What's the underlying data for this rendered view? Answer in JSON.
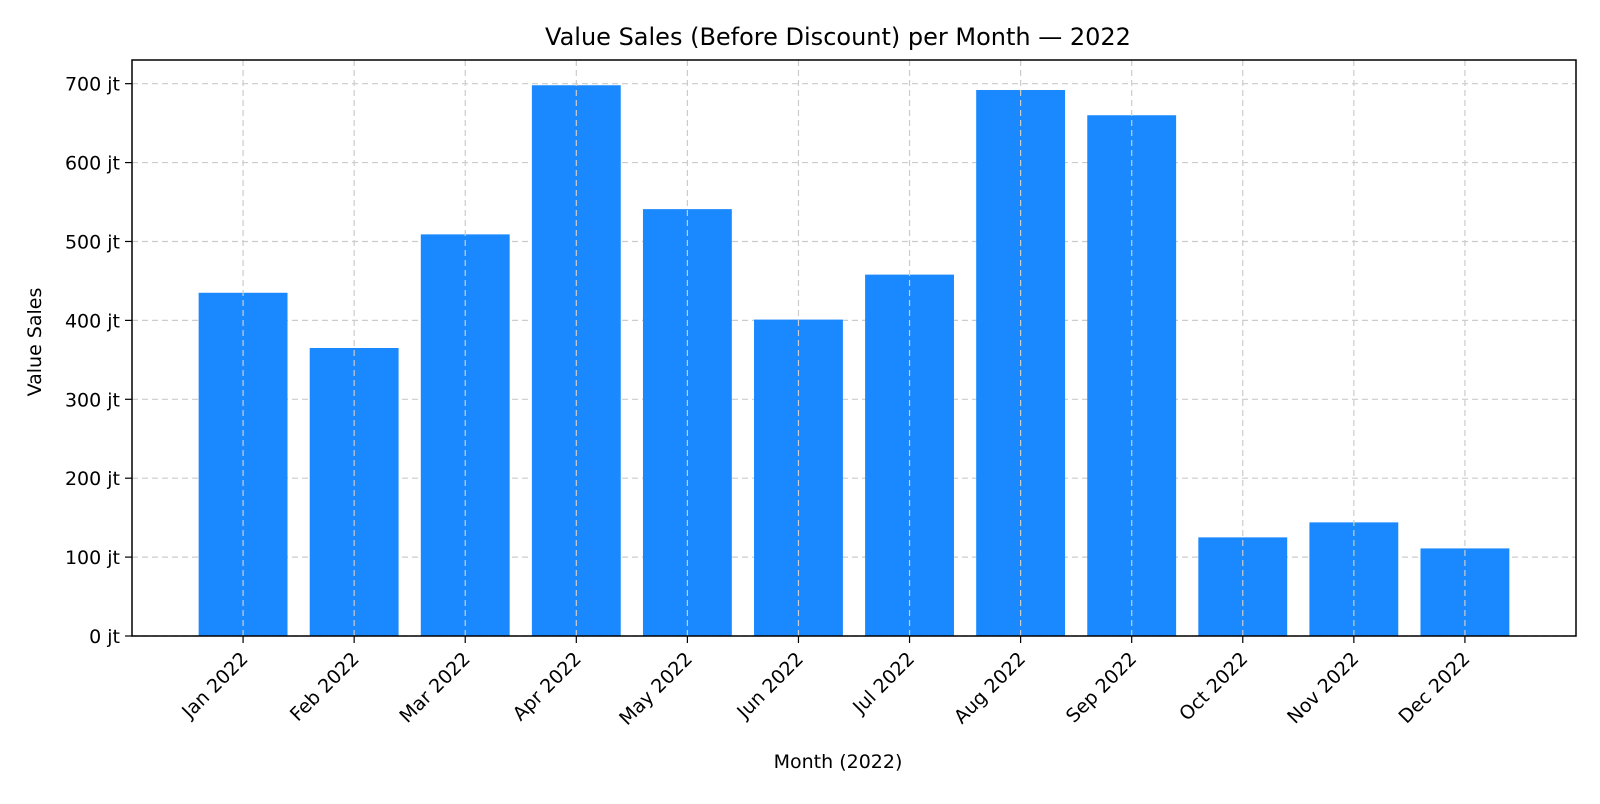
{
  "chart_data": {
    "type": "bar",
    "title": "Value Sales (Before Discount) per Month — 2022",
    "xlabel": "Month (2022)",
    "ylabel": "Value Sales",
    "categories": [
      "Jan 2022",
      "Feb 2022",
      "Mar 2022",
      "Apr 2022",
      "May 2022",
      "Jun 2022",
      "Jul 2022",
      "Aug 2022",
      "Sep 2022",
      "Oct 2022",
      "Nov 2022",
      "Dec 2022"
    ],
    "values": [
      435,
      365,
      509,
      698,
      541,
      401,
      458,
      692,
      660,
      125,
      144,
      111
    ],
    "value_unit": "jt",
    "ylim": [
      0,
      730
    ],
    "yticks": [
      0,
      100,
      200,
      300,
      400,
      500,
      600,
      700
    ],
    "ytick_labels": [
      "0 jt",
      "100 jt",
      "200 jt",
      "300 jt",
      "400 jt",
      "500 jt",
      "600 jt",
      "700 jt"
    ],
    "grid": true,
    "bar_color": "#1a88ff",
    "grid_color": "#cccccc"
  }
}
